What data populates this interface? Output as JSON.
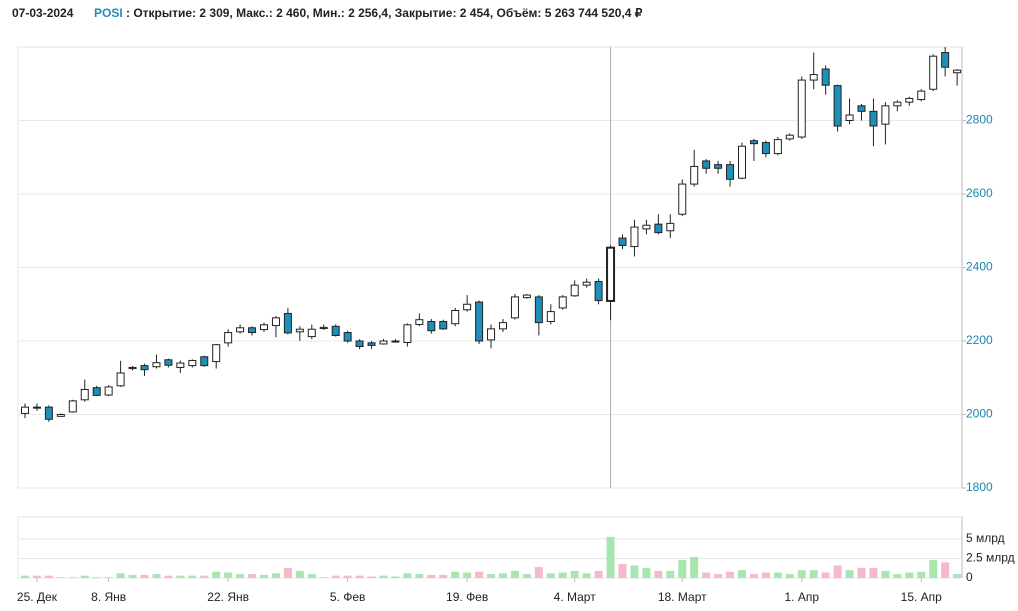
{
  "chart_data": {
    "type": "candlestick",
    "date": "07-03-2024",
    "ticker": "POSI",
    "info": ": Открытие: 2 309, Макс.: 2 460, Мин.: 2 256,4, Закрытие: 2 454, Объём: 5 263 744 520,4 ₽",
    "categories": [
      null,
      "25. Дек",
      null,
      null,
      null,
      null,
      null,
      "8. Янв",
      null,
      null,
      null,
      null,
      null,
      null,
      null,
      null,
      null,
      "22. Янв",
      null,
      null,
      null,
      null,
      null,
      null,
      null,
      null,
      null,
      "5. Фев",
      null,
      null,
      null,
      null,
      null,
      null,
      null,
      null,
      null,
      "19. Фев",
      null,
      null,
      null,
      null,
      null,
      null,
      null,
      null,
      "4. Март",
      null,
      null,
      null,
      null,
      null,
      null,
      null,
      null,
      "18. Март",
      null,
      null,
      null,
      null,
      null,
      null,
      null,
      null,
      null,
      "1. Апр",
      null,
      null,
      null,
      null,
      null,
      null,
      null,
      null,
      null,
      "15. Апр",
      null,
      null,
      null
    ],
    "open": [
      2003,
      2020,
      2020,
      1995,
      2007,
      2040,
      2073,
      2053,
      2078,
      2125,
      2133,
      2130,
      2149,
      2128,
      2133,
      2157,
      2144,
      2195,
      2225,
      2236,
      2231,
      2242,
      2275,
      2225,
      2212,
      2234,
      2240,
      2223,
      2200,
      2195,
      2192,
      2198,
      2196,
      2245,
      2253,
      2253,
      2247,
      2285,
      2306,
      2203,
      2233,
      2263,
      2318,
      2320,
      2253,
      2290,
      2323,
      2352,
      2362,
      2309,
      2480,
      2457,
      2505,
      2518,
      2500,
      2545,
      2627,
      2690,
      2680,
      2680,
      2643,
      2745,
      2740,
      2710,
      2750,
      2755,
      2910,
      2940,
      2895,
      2800,
      2840,
      2825,
      2790,
      2840,
      2850,
      2857,
      2885,
      2985,
      2930
    ],
    "high": [
      2030,
      2030,
      2025,
      2003,
      2040,
      2095,
      2078,
      2080,
      2146,
      2132,
      2138,
      2163,
      2152,
      2147,
      2150,
      2160,
      2192,
      2232,
      2245,
      2240,
      2250,
      2268,
      2290,
      2240,
      2245,
      2245,
      2245,
      2228,
      2205,
      2200,
      2205,
      2205,
      2248,
      2275,
      2260,
      2258,
      2290,
      2325,
      2310,
      2245,
      2260,
      2328,
      2328,
      2325,
      2300,
      2325,
      2365,
      2370,
      2370,
      2460,
      2490,
      2530,
      2530,
      2545,
      2545,
      2640,
      2720,
      2695,
      2690,
      2690,
      2740,
      2750,
      2745,
      2755,
      2765,
      2920,
      2985,
      2950,
      2898,
      2860,
      2845,
      2860,
      2850,
      2855,
      2865,
      2885,
      2980,
      3000,
      2940
    ],
    "low": [
      1990,
      2010,
      1980,
      1993,
      2005,
      2035,
      2050,
      2050,
      2075,
      2120,
      2105,
      2125,
      2128,
      2113,
      2128,
      2130,
      2125,
      2185,
      2220,
      2215,
      2225,
      2210,
      2218,
      2200,
      2205,
      2230,
      2212,
      2195,
      2178,
      2178,
      2190,
      2195,
      2185,
      2240,
      2220,
      2230,
      2240,
      2280,
      2192,
      2180,
      2225,
      2258,
      2315,
      2215,
      2245,
      2285,
      2320,
      2345,
      2300,
      2256.4,
      2450,
      2430,
      2490,
      2490,
      2480,
      2540,
      2620,
      2655,
      2655,
      2620,
      2640,
      2690,
      2700,
      2705,
      2745,
      2750,
      2885,
      2870,
      2770,
      2790,
      2800,
      2730,
      2735,
      2825,
      2840,
      2852,
      2880,
      2920,
      2895
    ],
    "close": [
      2020,
      2018,
      1987,
      2000,
      2037,
      2068,
      2052,
      2075,
      2113,
      2128,
      2122,
      2141,
      2134,
      2140,
      2147,
      2133,
      2190,
      2223,
      2236,
      2223,
      2244,
      2263,
      2222,
      2232,
      2232,
      2237,
      2215,
      2200,
      2185,
      2188,
      2200,
      2200,
      2244,
      2258,
      2228,
      2233,
      2283,
      2300,
      2200,
      2233,
      2250,
      2320,
      2325,
      2250,
      2280,
      2320,
      2352,
      2360,
      2310,
      2454,
      2460,
      2510,
      2515,
      2495,
      2520,
      2627,
      2675,
      2670,
      2670,
      2640,
      2730,
      2737,
      2710,
      2748,
      2760,
      2910,
      2925,
      2896,
      2785,
      2815,
      2825,
      2785,
      2840,
      2850,
      2860,
      2880,
      2975,
      2945,
      2937
    ],
    "up_color": "#ffffff",
    "down_color": "#1e8fb8",
    "outline_color": "#222222",
    "ylim": [
      1800,
      3000
    ],
    "yticks": [
      1800,
      2000,
      2200,
      2400,
      2600,
      2800
    ],
    "grid": true,
    "crosshair_index": 49,
    "volume": {
      "values": [
        0.3,
        0.3,
        0.3,
        0.1,
        0.1,
        0.3,
        0.1,
        0.1,
        0.6,
        0.4,
        0.4,
        0.5,
        0.3,
        0.3,
        0.3,
        0.3,
        0.8,
        0.7,
        0.5,
        0.5,
        0.4,
        0.6,
        1.3,
        0.9,
        0.5,
        0.1,
        0.3,
        0.3,
        0.3,
        0.2,
        0.3,
        0.2,
        0.6,
        0.5,
        0.4,
        0.4,
        0.8,
        0.7,
        0.8,
        0.5,
        0.6,
        0.9,
        0.5,
        1.4,
        0.6,
        0.7,
        0.9,
        0.6,
        0.9,
        5.26,
        1.8,
        1.6,
        1.3,
        0.9,
        0.9,
        2.3,
        2.7,
        0.7,
        0.5,
        0.8,
        1.0,
        0.5,
        0.7,
        0.7,
        0.5,
        1.0,
        1.0,
        0.7,
        1.6,
        1.0,
        1.3,
        1.3,
        0.9,
        0.5,
        0.7,
        0.8,
        2.3,
        2.0,
        0.5
      ],
      "up_color": "#a8e6b0",
      "down_color": "#f6b9cb",
      "ylim": [
        0,
        7.8
      ],
      "yticks": [
        0,
        {
          "value": 2.5,
          "label": "2.5 млрд"
        },
        {
          "value": 5,
          "label": "5 млрд"
        }
      ]
    }
  }
}
